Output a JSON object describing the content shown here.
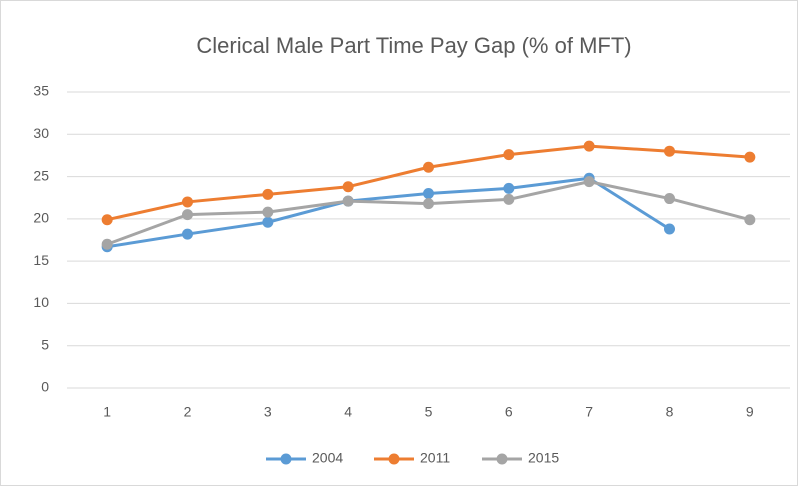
{
  "chart_data": {
    "type": "line",
    "title": "Clerical Male Part Time Pay Gap (% of MFT)",
    "categories": [
      "1",
      "2",
      "3",
      "4",
      "5",
      "6",
      "7",
      "8",
      "9"
    ],
    "series": [
      {
        "name": "2004",
        "color": "#5b9bd5",
        "values": [
          16.7,
          18.2,
          19.6,
          22.1,
          23.0,
          23.6,
          24.8,
          18.8,
          null
        ]
      },
      {
        "name": "2011",
        "color": "#ed7d31",
        "values": [
          19.9,
          22.0,
          22.9,
          23.8,
          26.1,
          27.6,
          28.6,
          28.0,
          27.3
        ]
      },
      {
        "name": "2015",
        "color": "#a5a5a5",
        "values": [
          17.0,
          20.5,
          20.8,
          22.1,
          21.8,
          22.3,
          24.4,
          22.4,
          19.9
        ]
      }
    ],
    "ylim": [
      0,
      35
    ],
    "yticks": [
      0,
      5,
      10,
      15,
      20,
      25,
      30,
      35
    ],
    "grid": true,
    "legend": "bottom"
  }
}
